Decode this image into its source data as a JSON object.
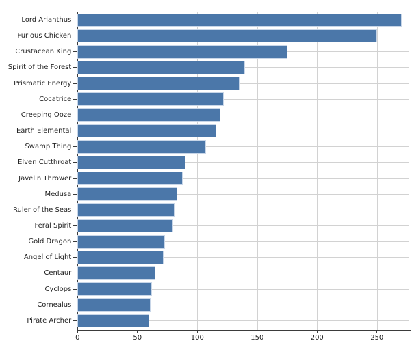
{
  "chart_data": {
    "type": "bar",
    "orientation": "horizontal",
    "title": "",
    "xlabel": "",
    "ylabel": "",
    "categories": [
      "Lord Arianthus",
      "Furious Chicken",
      "Crustacean King",
      "Spirit of the Forest",
      "Prismatic Energy",
      "Cocatrice",
      "Creeping Ooze",
      "Earth Elemental",
      "Swamp Thing",
      "Elven Cutthroat",
      "Javelin Thrower",
      "Medusa",
      "Ruler of the Seas",
      "Feral Spirit",
      "Gold Dragon",
      "Angel of Light",
      "Centaur",
      "Cyclops",
      "Cornealus",
      "Pirate Archer"
    ],
    "values": [
      271,
      250,
      175,
      140,
      135,
      122,
      119,
      116,
      107,
      90,
      88,
      83,
      81,
      80,
      73,
      72,
      65,
      62,
      61,
      60
    ],
    "xticks": [
      0,
      50,
      100,
      150,
      200,
      250
    ],
    "xlim": [
      0,
      277
    ],
    "grid": true,
    "legend_position": "none",
    "colors": {
      "bar_fill": "#4b77a9",
      "bar_edge": "#c8d6e8",
      "gridline": "#d2d2d2",
      "axis_line": "#3b3b3b",
      "tick_text": "#222222",
      "background": "#ffffff"
    }
  }
}
